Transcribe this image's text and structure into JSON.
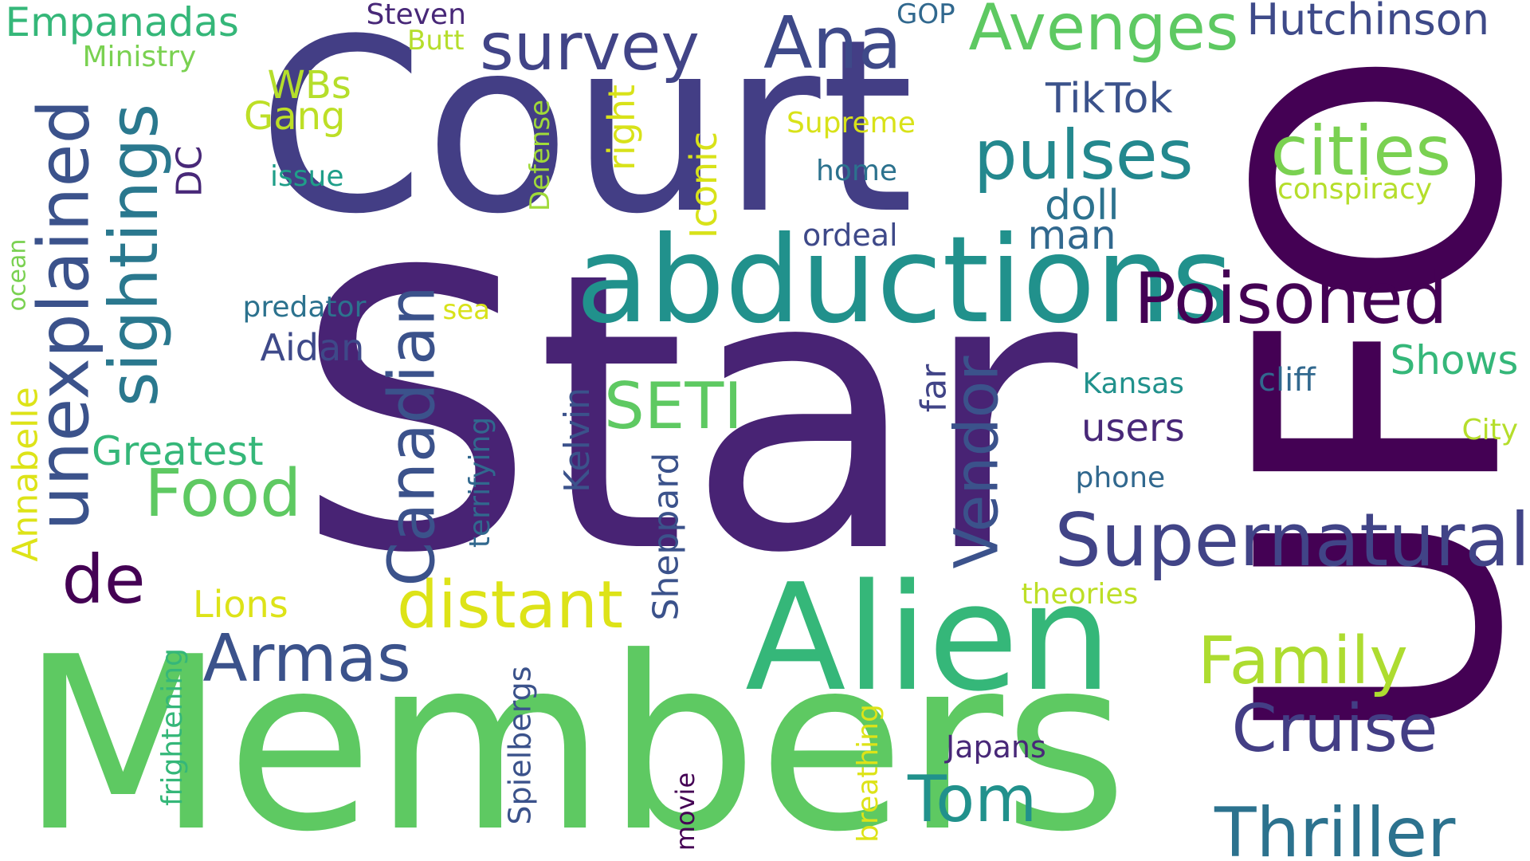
{
  "words": [
    {
      "text": "Star",
      "color": "#482374"
    },
    {
      "text": "UFO",
      "color": "#440154"
    },
    {
      "text": "Court",
      "color": "#433e85"
    },
    {
      "text": "Members",
      "color": "#5ec962"
    },
    {
      "text": "Alien",
      "color": "#35b779"
    },
    {
      "text": "abductions",
      "color": "#21918c"
    },
    {
      "text": "unexplained",
      "color": "#3b528b"
    },
    {
      "text": "sightings",
      "color": "#2a788e"
    },
    {
      "text": "Supernatural",
      "color": "#414487"
    },
    {
      "text": "Poisoned",
      "color": "#440154"
    },
    {
      "text": "cities",
      "color": "#7ad151"
    },
    {
      "text": "pulses",
      "color": "#23888e"
    },
    {
      "text": "Avenges",
      "color": "#5ec962"
    },
    {
      "text": "survey",
      "color": "#414487"
    },
    {
      "text": "Ana",
      "color": "#3e4989"
    },
    {
      "text": "Hutchinson",
      "color": "#3e4a89"
    },
    {
      "text": "Cruise",
      "color": "#433e85"
    },
    {
      "text": "Thriller",
      "color": "#2c728e"
    },
    {
      "text": "Family",
      "color": "#addc30"
    },
    {
      "text": "Tom",
      "color": "#21918c"
    },
    {
      "text": "distant",
      "color": "#dde318"
    },
    {
      "text": "Armas",
      "color": "#3b528b"
    },
    {
      "text": "Canadian",
      "color": "#3b528b"
    },
    {
      "text": "Vendor",
      "color": "#3b528b"
    },
    {
      "text": "Food",
      "color": "#5ec962"
    },
    {
      "text": "SETI",
      "color": "#5ec962"
    },
    {
      "text": "de",
      "color": "#440154"
    },
    {
      "text": "Greatest",
      "color": "#35b779"
    },
    {
      "text": "Empanadas",
      "color": "#35b779"
    },
    {
      "text": "Ministry",
      "color": "#7ad151"
    },
    {
      "text": "Steven",
      "color": "#482878"
    },
    {
      "text": "Butt",
      "color": "#b5de2b"
    },
    {
      "text": "GOP",
      "color": "#31688e"
    },
    {
      "text": "WBs",
      "color": "#b5de2b"
    },
    {
      "text": "Gang",
      "color": "#bddf26"
    },
    {
      "text": "DC",
      "color": "#482878"
    },
    {
      "text": "issue",
      "color": "#1f9e89"
    },
    {
      "text": "TikTok",
      "color": "#3b528b"
    },
    {
      "text": "Supreme",
      "color": "#d8e219"
    },
    {
      "text": "home",
      "color": "#2c728e"
    },
    {
      "text": "Defense",
      "color": "#a0da39"
    },
    {
      "text": "right",
      "color": "#d8e219"
    },
    {
      "text": "Iconic",
      "color": "#d8e219"
    },
    {
      "text": "doll",
      "color": "#2c728e"
    },
    {
      "text": "man",
      "color": "#31688e"
    },
    {
      "text": "ordeal",
      "color": "#3e4989"
    },
    {
      "text": "conspiracy",
      "color": "#b5de2b"
    },
    {
      "text": "predator",
      "color": "#2c728e"
    },
    {
      "text": "sea",
      "color": "#d8e219"
    },
    {
      "text": "Aidan",
      "color": "#3e4989"
    },
    {
      "text": "ocean",
      "color": "#7ad151"
    },
    {
      "text": "Annabelle",
      "color": "#dde318"
    },
    {
      "text": "Kelvin",
      "color": "#3b528b"
    },
    {
      "text": "terrifying",
      "color": "#31688e"
    },
    {
      "text": "far",
      "color": "#414487"
    },
    {
      "text": "users",
      "color": "#482878"
    },
    {
      "text": "Kansas",
      "color": "#21918c"
    },
    {
      "text": "cliff",
      "color": "#31688e"
    },
    {
      "text": "Shows",
      "color": "#35b779"
    },
    {
      "text": "City",
      "color": "#b5de2b"
    },
    {
      "text": "phone",
      "color": "#31688e"
    },
    {
      "text": "Sheppard",
      "color": "#3b528b"
    },
    {
      "text": "Lions",
      "color": "#dde318"
    },
    {
      "text": "theories",
      "color": "#bddf26"
    },
    {
      "text": "Japans",
      "color": "#482878"
    },
    {
      "text": "frightening",
      "color": "#35b779"
    },
    {
      "text": "Spielbergs",
      "color": "#3b528b"
    },
    {
      "text": "movie",
      "color": "#440154"
    },
    {
      "text": "breathing",
      "color": "#dde318"
    }
  ]
}
